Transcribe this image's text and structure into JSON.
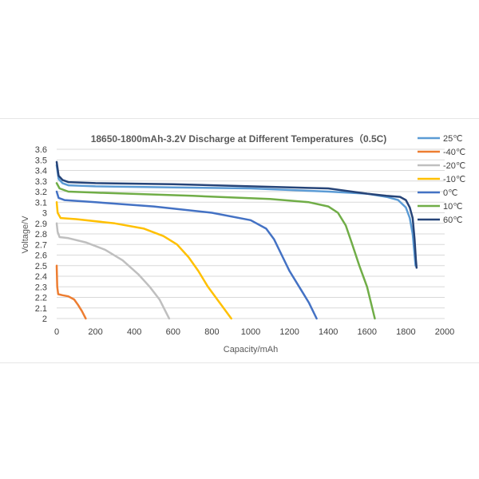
{
  "chart_data": {
    "type": "line",
    "title": "18650-1800mAh-3.2V Discharge at Different Temperatures（0.5C)",
    "xlabel": "Capacity/mAh",
    "ylabel": "Voltage/V",
    "xlim": [
      0,
      2000
    ],
    "ylim": [
      2,
      3.6
    ],
    "xticks": [
      0,
      200,
      400,
      600,
      800,
      1000,
      1200,
      1400,
      1600,
      1800,
      2000
    ],
    "yticks": [
      2,
      2.1,
      2.2,
      2.3,
      2.4,
      2.5,
      2.6,
      2.7,
      2.8,
      2.9,
      3,
      3.1,
      3.2,
      3.3,
      3.4,
      3.5,
      3.6
    ],
    "grid": "horizontal",
    "legend_position": "right",
    "series": [
      {
        "name": "25℃",
        "color": "#5b9bd5",
        "points": [
          [
            0,
            3.45
          ],
          [
            10,
            3.32
          ],
          [
            30,
            3.28
          ],
          [
            60,
            3.26
          ],
          [
            200,
            3.25
          ],
          [
            600,
            3.24
          ],
          [
            1000,
            3.23
          ],
          [
            1400,
            3.2
          ],
          [
            1600,
            3.18
          ],
          [
            1700,
            3.15
          ],
          [
            1760,
            3.12
          ],
          [
            1800,
            3.05
          ],
          [
            1820,
            2.95
          ],
          [
            1835,
            2.8
          ],
          [
            1845,
            2.6
          ],
          [
            1850,
            2.5
          ]
        ]
      },
      {
        "name": "-40℃",
        "color": "#ed7d31",
        "points": [
          [
            0,
            2.5
          ],
          [
            3,
            2.3
          ],
          [
            8,
            2.23
          ],
          [
            30,
            2.22
          ],
          [
            60,
            2.21
          ],
          [
            90,
            2.18
          ],
          [
            110,
            2.13
          ],
          [
            130,
            2.07
          ],
          [
            150,
            2.0
          ]
        ]
      },
      {
        "name": "-20℃",
        "color": "#bfbfbf",
        "points": [
          [
            0,
            2.9
          ],
          [
            5,
            2.82
          ],
          [
            15,
            2.77
          ],
          [
            60,
            2.76
          ],
          [
            150,
            2.72
          ],
          [
            250,
            2.65
          ],
          [
            340,
            2.55
          ],
          [
            420,
            2.42
          ],
          [
            480,
            2.3
          ],
          [
            530,
            2.18
          ],
          [
            580,
            2.0
          ]
        ]
      },
      {
        "name": "-10℃",
        "color": "#ffc000",
        "points": [
          [
            0,
            3.1
          ],
          [
            5,
            3.0
          ],
          [
            20,
            2.95
          ],
          [
            100,
            2.94
          ],
          [
            300,
            2.9
          ],
          [
            450,
            2.85
          ],
          [
            550,
            2.78
          ],
          [
            620,
            2.7
          ],
          [
            680,
            2.58
          ],
          [
            730,
            2.45
          ],
          [
            780,
            2.3
          ],
          [
            840,
            2.15
          ],
          [
            900,
            2.0
          ]
        ]
      },
      {
        "name": "0℃",
        "color": "#4472c4",
        "points": [
          [
            0,
            3.2
          ],
          [
            10,
            3.14
          ],
          [
            40,
            3.12
          ],
          [
            200,
            3.1
          ],
          [
            500,
            3.06
          ],
          [
            800,
            3.0
          ],
          [
            1000,
            2.93
          ],
          [
            1080,
            2.85
          ],
          [
            1120,
            2.75
          ],
          [
            1160,
            2.6
          ],
          [
            1200,
            2.45
          ],
          [
            1250,
            2.3
          ],
          [
            1300,
            2.15
          ],
          [
            1340,
            2.0
          ]
        ]
      },
      {
        "name": "10℃",
        "color": "#70ad47",
        "points": [
          [
            0,
            3.28
          ],
          [
            15,
            3.23
          ],
          [
            60,
            3.2
          ],
          [
            200,
            3.19
          ],
          [
            700,
            3.16
          ],
          [
            1100,
            3.13
          ],
          [
            1300,
            3.1
          ],
          [
            1400,
            3.06
          ],
          [
            1450,
            3.0
          ],
          [
            1490,
            2.88
          ],
          [
            1520,
            2.72
          ],
          [
            1560,
            2.5
          ],
          [
            1600,
            2.3
          ],
          [
            1640,
            2.0
          ]
        ]
      },
      {
        "name": "60℃",
        "color": "#264478",
        "points": [
          [
            0,
            3.48
          ],
          [
            10,
            3.35
          ],
          [
            30,
            3.31
          ],
          [
            60,
            3.29
          ],
          [
            200,
            3.28
          ],
          [
            600,
            3.27
          ],
          [
            1000,
            3.25
          ],
          [
            1400,
            3.23
          ],
          [
            1600,
            3.18
          ],
          [
            1700,
            3.16
          ],
          [
            1770,
            3.15
          ],
          [
            1800,
            3.12
          ],
          [
            1820,
            3.05
          ],
          [
            1835,
            2.95
          ],
          [
            1845,
            2.75
          ],
          [
            1852,
            2.55
          ],
          [
            1855,
            2.48
          ]
        ]
      }
    ]
  }
}
